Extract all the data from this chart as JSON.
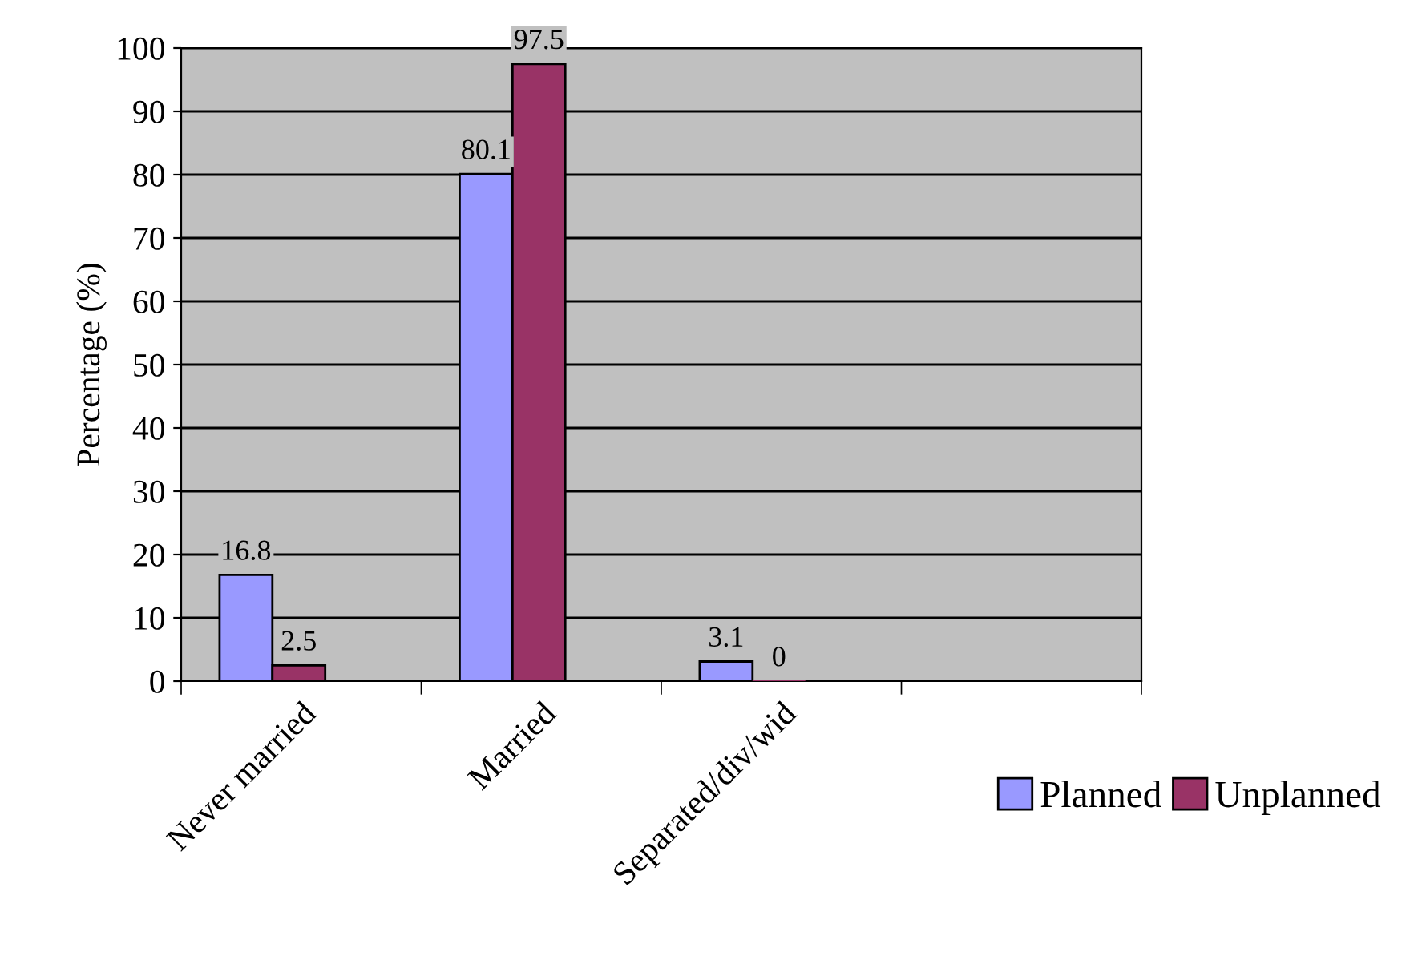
{
  "chart_data": {
    "type": "bar",
    "ylabel": "Percentage (%)",
    "categories": [
      "Never married",
      "Married",
      "Separated/div/wid",
      null
    ],
    "series": [
      {
        "name": "Planned",
        "color": "#9999ff",
        "values": [
          16.8,
          80.1,
          3.1,
          null
        ]
      },
      {
        "name": "Unplanned",
        "color": "#993366",
        "values": [
          2.5,
          97.5,
          0,
          null
        ]
      }
    ],
    "ylim": [
      0,
      100
    ],
    "yticks": [
      0,
      10,
      20,
      30,
      40,
      50,
      60,
      70,
      80,
      90,
      100
    ],
    "grid": "y",
    "legend": "bottom right",
    "data_labels": true
  }
}
